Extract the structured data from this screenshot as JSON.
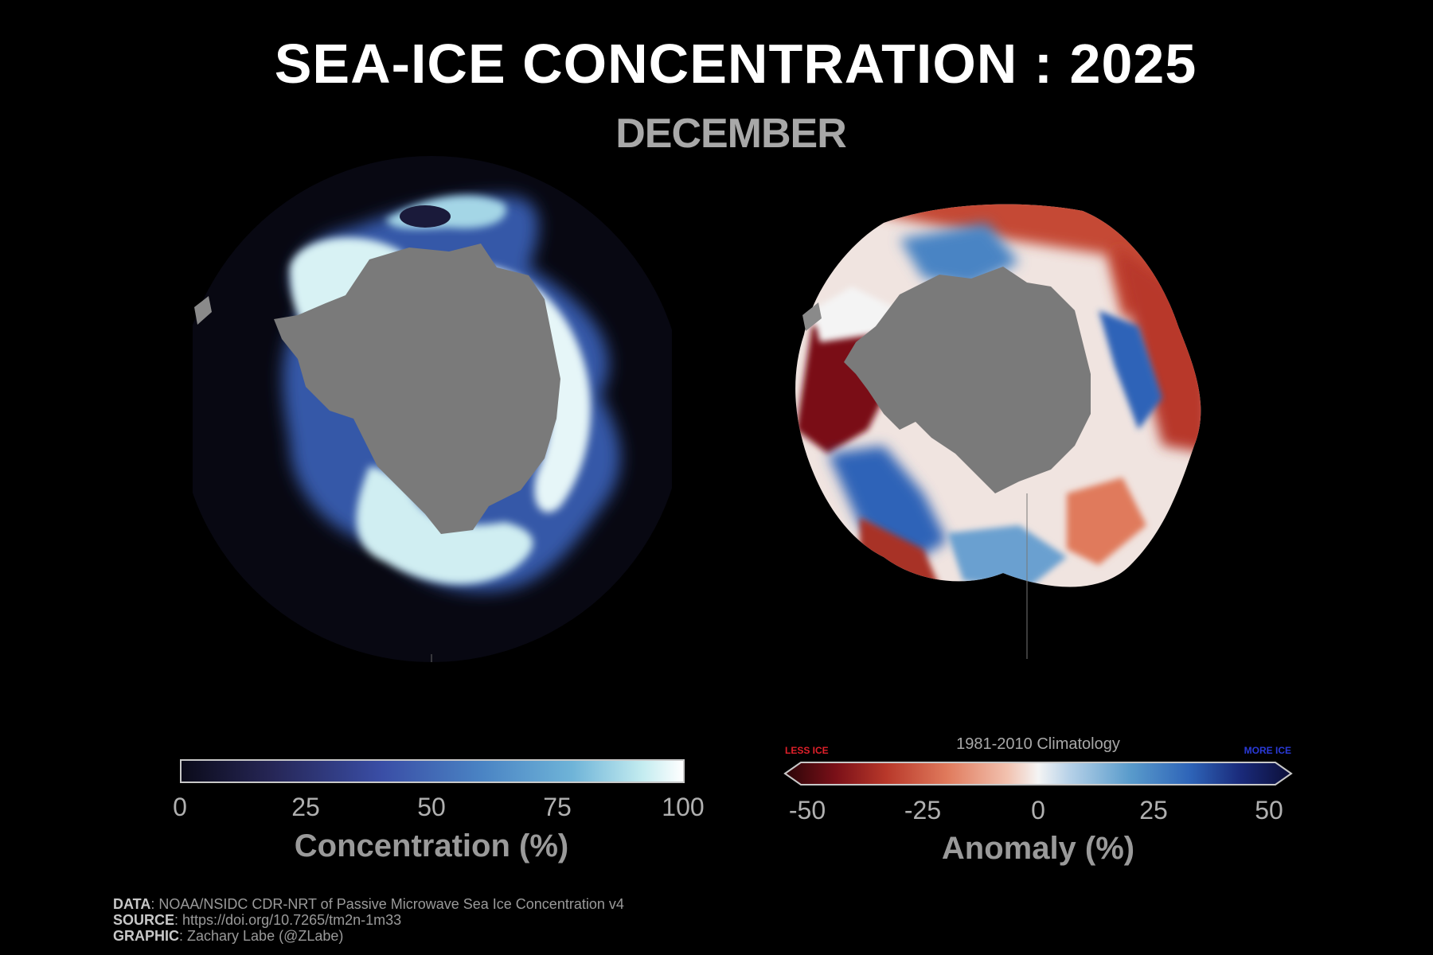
{
  "header": {
    "title": "SEA-ICE CONCENTRATION : 2025",
    "subtitle": "DECEMBER"
  },
  "concentration_colorbar": {
    "label": "Concentration (%)",
    "ticks": [
      "0",
      "25",
      "50",
      "75",
      "100"
    ],
    "range": [
      0,
      100
    ],
    "colors": [
      "#0b0b1a",
      "#262656",
      "#3a4ea6",
      "#4a84c4",
      "#6fb4d8",
      "#c4ecf0",
      "#ffffff"
    ]
  },
  "anomaly_colorbar": {
    "climatology_label": "1981-2010 Climatology",
    "less_label": "LESS ICE",
    "more_label": "MORE ICE",
    "label": "Anomaly (%)",
    "ticks": [
      "-50",
      "-25",
      "0",
      "25",
      "50"
    ],
    "range": [
      -50,
      50
    ],
    "colors": [
      "#2a0508",
      "#7a1018",
      "#b8382a",
      "#e07a5c",
      "#f2c2b0",
      "#f4f4f4",
      "#b8d2e8",
      "#5a9ccc",
      "#2e64b8",
      "#1a2a7a",
      "#0c0f38"
    ]
  },
  "credits": {
    "data_key": "DATA",
    "data_value": ": NOAA/NSIDC CDR-NRT of Passive Microwave Sea Ice Concentration v4",
    "source_key": "SOURCE",
    "source_value": ": https://doi.org/10.7265/tm2n-1m33",
    "graphic_key": "GRAPHIC",
    "graphic_value": ": Zachary Labe (@ZLabe)"
  },
  "colors": {
    "background": "#000000",
    "land": "#7a7a7a",
    "ocean_disk": "#080812"
  }
}
